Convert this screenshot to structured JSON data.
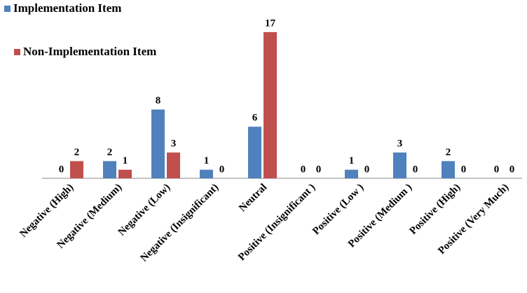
{
  "chart_data": {
    "type": "bar",
    "categories": [
      "Negative (High)",
      "Negative (Medium)",
      "Negative (Low)",
      "Negative (Insignificant)",
      "Neutral",
      "Positive (Insignificant )",
      "Positive (Low )",
      "Positive (Medium )",
      "Positive (High)",
      "Positive (Very Much)"
    ],
    "series": [
      {
        "name": "Implementation Item",
        "color": "#4f81bd",
        "values": [
          0,
          2,
          8,
          1,
          6,
          0,
          1,
          3,
          2,
          0
        ]
      },
      {
        "name": "Non-Implementation Item",
        "color": "#c0504d",
        "values": [
          2,
          1,
          3,
          0,
          17,
          0,
          0,
          0,
          0,
          0
        ]
      }
    ],
    "legend": "top-left"
  }
}
